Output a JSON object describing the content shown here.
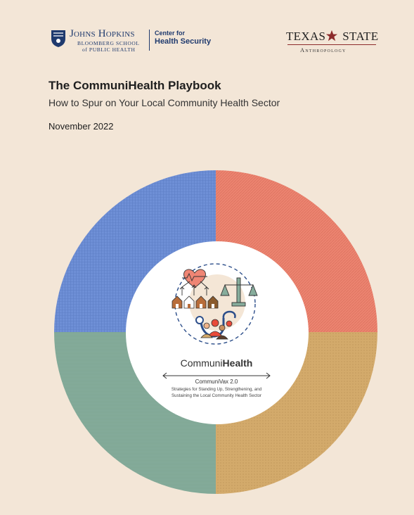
{
  "header": {
    "jhu": {
      "name": "Johns Hopkins",
      "school_line1": "BLOOMBERG SCHOOL",
      "school_line2": "of PUBLIC HEALTH",
      "center_line1": "Center for",
      "center_line2": "Health Security"
    },
    "txstate": {
      "name_left": "TEXAS",
      "name_right": "STATE",
      "sub": "Anthropology"
    }
  },
  "document": {
    "title": "The CommuniHealth Playbook",
    "subtitle": "How to Spur on Your Local Community Health Sector",
    "date": "November 2022"
  },
  "cover_art": {
    "brand_light": "Communi",
    "brand_bold": "Health",
    "version": "CommuniVax 2.0",
    "tagline_line1": "Strategies for Standing Up, Strengthening, and",
    "tagline_line2": "Sustaining the Local Community Health Sector",
    "quadrant_colors": {
      "top_left": "#6e8fd6",
      "top_right": "#ec8470",
      "bottom_right": "#d3aa6b",
      "bottom_left": "#87ad9c"
    }
  }
}
